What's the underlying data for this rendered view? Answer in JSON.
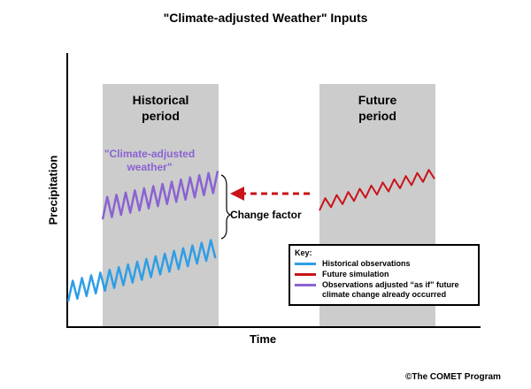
{
  "title": "\"Climate-adjusted Weather\" Inputs",
  "axes": {
    "y_label": "Precipitation",
    "x_label": "Time"
  },
  "periods": {
    "historical": {
      "line1": "Historical",
      "line2": "period"
    },
    "future": {
      "line1": "Future",
      "line2": "period"
    }
  },
  "annotations": {
    "climate_adjusted_line1": "\"Climate-adjusted",
    "climate_adjusted_line2": "weather\"",
    "change_factor": "Change factor"
  },
  "key": {
    "title": "Key:",
    "items": [
      {
        "label": "Historical observations",
        "color": "#2e9ee6"
      },
      {
        "label": "Future simulation",
        "color": "#c8141a"
      },
      {
        "label": "Observations adjusted “as if” future climate change already occurred",
        "color": "#8a63d2"
      }
    ]
  },
  "colors": {
    "period_fill": "#cccccc",
    "historical": "#2e9ee6",
    "future": "#c8141a",
    "adjusted": "#8a63d2",
    "arrow": "#c8141a"
  },
  "copyright": "©The COMET Program"
}
